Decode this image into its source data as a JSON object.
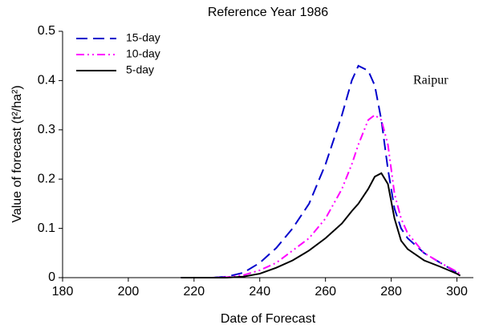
{
  "chart_data": {
    "type": "line",
    "title": "Reference Year 1986",
    "x_label": "Date of Forecast",
    "y_label": "Value of forecast (t²/ha²)",
    "annotation": "Raipur",
    "x": [
      216,
      225,
      230,
      235,
      240,
      245,
      250,
      255,
      260,
      265,
      268,
      270,
      273,
      275,
      277,
      279,
      281,
      283,
      285,
      290,
      295,
      300,
      301
    ],
    "series": [
      {
        "name": "15-day",
        "color": "#0000cc",
        "style": "dashed",
        "values": [
          0,
          0,
          0.002,
          0.01,
          0.03,
          0.06,
          0.1,
          0.15,
          0.23,
          0.33,
          0.4,
          0.43,
          0.42,
          0.39,
          0.32,
          0.22,
          0.14,
          0.1,
          0.08,
          0.05,
          0.03,
          0.01,
          0.005
        ]
      },
      {
        "name": "10-day",
        "color": "#ff00ff",
        "style": "dash-dot-dot",
        "values": [
          0,
          0,
          0.001,
          0.005,
          0.015,
          0.03,
          0.055,
          0.08,
          0.12,
          0.18,
          0.23,
          0.27,
          0.32,
          0.33,
          0.32,
          0.27,
          0.17,
          0.12,
          0.09,
          0.05,
          0.03,
          0.012,
          0.007
        ]
      },
      {
        "name": "5-day",
        "color": "#000000",
        "style": "solid",
        "values": [
          0,
          0,
          0,
          0.002,
          0.008,
          0.02,
          0.035,
          0.055,
          0.08,
          0.11,
          0.135,
          0.15,
          0.18,
          0.205,
          0.212,
          0.19,
          0.12,
          0.075,
          0.058,
          0.035,
          0.022,
          0.008,
          0.004
        ]
      }
    ],
    "xlim": [
      180,
      305
    ],
    "xticks": [
      180,
      200,
      220,
      240,
      260,
      280,
      300
    ],
    "ylim": [
      0,
      0.5
    ],
    "yticks": [
      0,
      0.1,
      0.2,
      0.3,
      0.4,
      0.5
    ],
    "legend": "upper left"
  }
}
